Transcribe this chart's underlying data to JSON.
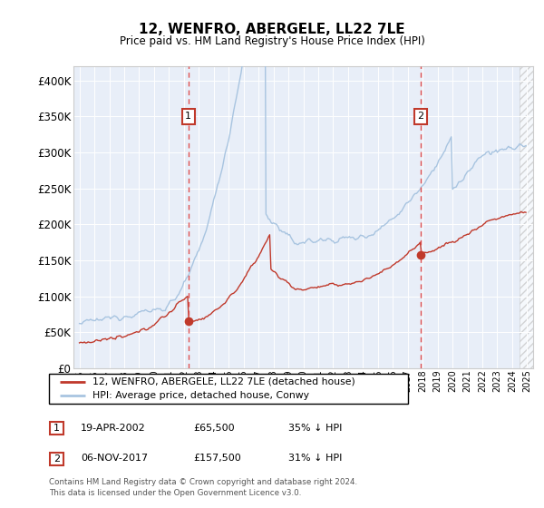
{
  "title": "12, WENFRO, ABERGELE, LL22 7LE",
  "subtitle": "Price paid vs. HM Land Registry's House Price Index (HPI)",
  "legend_line1": "12, WENFRO, ABERGELE, LL22 7LE (detached house)",
  "legend_line2": "HPI: Average price, detached house, Conwy",
  "annotation1_date": "19-APR-2002",
  "annotation1_price": "£65,500",
  "annotation1_hpi": "35% ↓ HPI",
  "annotation2_date": "06-NOV-2017",
  "annotation2_price": "£157,500",
  "annotation2_hpi": "31% ↓ HPI",
  "footer": "Contains HM Land Registry data © Crown copyright and database right 2024.\nThis data is licensed under the Open Government Licence v3.0.",
  "hpi_color": "#a8c4e0",
  "price_color": "#c0392b",
  "marker_color": "#c0392b",
  "vline_color": "#e05050",
  "plot_bg": "#e8eef8",
  "annotation_box_color": "#c0392b",
  "ylim": [
    0,
    420000
  ],
  "yticks": [
    0,
    50000,
    100000,
    150000,
    200000,
    250000,
    300000,
    350000,
    400000
  ],
  "vline1_x": 2002.3,
  "vline2_x": 2017.85,
  "marker1_x": 2002.3,
  "marker1_y": 65500,
  "marker2_x": 2017.85,
  "marker2_y": 157500,
  "hatch_start": 2024.5,
  "xlim": [
    1994.6,
    2025.4
  ]
}
